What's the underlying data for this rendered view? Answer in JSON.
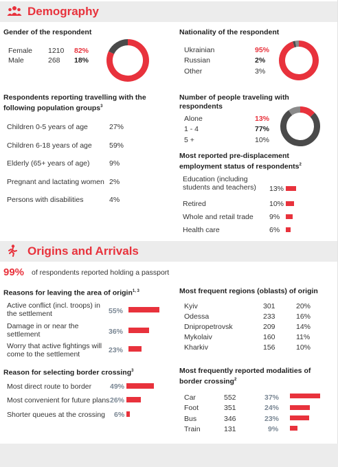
{
  "demography": {
    "title": "Demography",
    "gender": {
      "heading": "Gender of the respondent",
      "rows": [
        {
          "label": "Female",
          "count": "1210",
          "pct": "82%"
        },
        {
          "label": "Male",
          "count": "268",
          "pct": "18%"
        }
      ],
      "donut": [
        0.82,
        0.18
      ]
    },
    "nationality": {
      "heading": "Nationality of the respondent",
      "rows": [
        {
          "label": "Ukrainian",
          "pct": "95%"
        },
        {
          "label": "Russian",
          "pct": "2%"
        },
        {
          "label": "Other",
          "pct": "3%"
        }
      ],
      "donut": [
        0.95,
        0.02,
        0.03
      ]
    },
    "groups": {
      "heading_line1": "Respondents reporting travelling with the",
      "heading_line2": "following population groups",
      "sup": "3",
      "rows": [
        {
          "label": "Children 0-5 years of age",
          "pct": "27%"
        },
        {
          "label": "Children 6-18 years of age",
          "pct": "59%"
        },
        {
          "label": "Elderly (65+ years of age)",
          "pct": "9%"
        },
        {
          "label": "Pregnant and lactating women",
          "pct": "2%"
        },
        {
          "label": "Persons with disabilities",
          "pct": "4%"
        }
      ]
    },
    "people": {
      "heading_line1": "Number of people traveling with",
      "heading_line2": "respondents",
      "rows": [
        {
          "label": "Alone",
          "pct": "13%"
        },
        {
          "label": "1 - 4",
          "pct": "77%"
        },
        {
          "label": "5 +",
          "pct": "10%"
        }
      ],
      "donut": [
        0.13,
        0.77,
        0.1
      ]
    },
    "employment": {
      "heading_line1": "Most reported pre-displacement",
      "heading_line2": "employment status of respondents",
      "sup": "2",
      "rows": [
        {
          "label_line1": "Education (including",
          "label_line2": "students and teachers)",
          "pct": "13%",
          "value": 13
        },
        {
          "label_line1": "Retired",
          "label_line2": "",
          "pct": "10%",
          "value": 10
        },
        {
          "label_line1": "Whole and retail trade",
          "label_line2": "",
          "pct": "9%",
          "value": 9
        },
        {
          "label_line1": "Health care",
          "label_line2": "",
          "pct": "6%",
          "value": 6
        }
      ]
    }
  },
  "origins": {
    "title": "Origins and Arrivals",
    "passport": {
      "pct": "99%",
      "text": "of respondents reported holding a passport"
    },
    "reasons": {
      "heading": "Reasons for leaving the area of origin",
      "sup": "1, 3",
      "rows": [
        {
          "label_line1": "Active conflict (incl. troops) in",
          "label_line2": "the settlement",
          "pct": "55%",
          "value": 55
        },
        {
          "label_line1": "Damage in or near the",
          "label_line2": "settlement",
          "pct": "36%",
          "value": 36
        },
        {
          "label_line1": "Worry that active fightings will",
          "label_line2": "come to the settlement",
          "pct": "23%",
          "value": 23
        }
      ]
    },
    "regions": {
      "heading": "Most frequent regions (oblasts) of origin",
      "rows": [
        {
          "label": "Kyiv",
          "count": "301",
          "pct": "20%"
        },
        {
          "label": "Odessa",
          "count": "233",
          "pct": "16%"
        },
        {
          "label": "Dnipropetrovsk",
          "count": "209",
          "pct": "14%"
        },
        {
          "label": "Mykolaiv",
          "count": "160",
          "pct": "11%"
        },
        {
          "label": "Kharkiv",
          "count": "156",
          "pct": "10%"
        }
      ]
    },
    "border": {
      "heading": "Reason for selecting border crossing",
      "sup": "3",
      "rows": [
        {
          "label": "Most direct route to border",
          "pct": "49%",
          "value": 49
        },
        {
          "label": "Most convenient for future plans",
          "pct": "26%",
          "value": 26
        },
        {
          "label": "Shorter queues at the crossing",
          "pct": "6%",
          "value": 6
        }
      ]
    },
    "modalities": {
      "heading_line1": "Most frequently reported modalities of",
      "heading_line2": "border crossing",
      "sup": "2",
      "rows": [
        {
          "label": "Car",
          "count": "552",
          "pct": "37%",
          "value": 37
        },
        {
          "label": "Foot",
          "count": "351",
          "pct": "24%",
          "value": 24
        },
        {
          "label": "Bus",
          "count": "346",
          "pct": "23%",
          "value": 23
        },
        {
          "label": "Train",
          "count": "131",
          "pct": "9%",
          "value": 9
        }
      ]
    }
  },
  "colors": {
    "red": "#e8323c",
    "dark": "#4a4a4a",
    "grey": "#8a8a8a"
  }
}
